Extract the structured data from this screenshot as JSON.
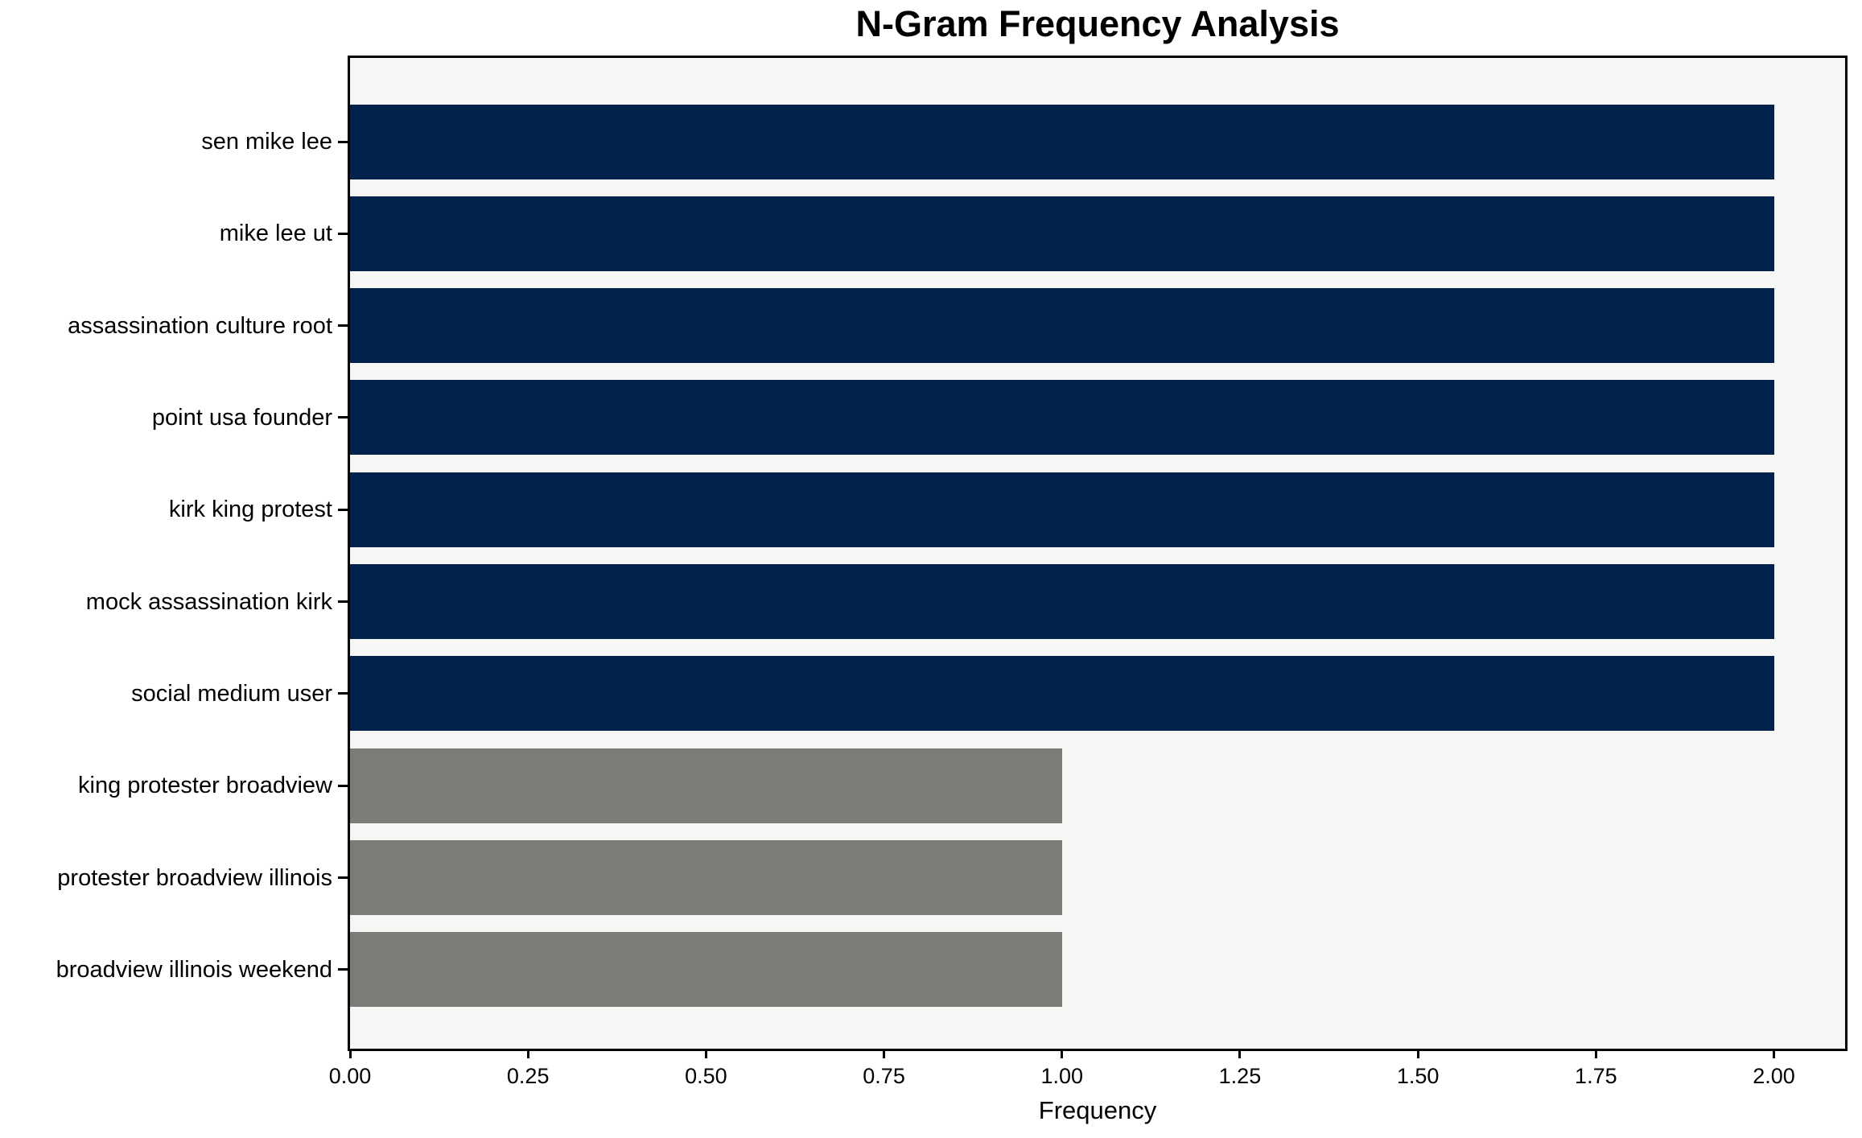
{
  "chart_data": {
    "type": "bar",
    "orientation": "horizontal",
    "title": "N-Gram Frequency Analysis",
    "xlabel": "Frequency",
    "ylabel": "",
    "xlim": [
      0,
      2.1
    ],
    "grid": false,
    "legend_position": "none",
    "categories": [
      "sen mike lee",
      "mike lee ut",
      "assassination culture root",
      "point usa founder",
      "kirk king protest",
      "mock assassination kirk",
      "social medium user",
      "king protester broadview",
      "protester broadview illinois",
      "broadview illinois weekend"
    ],
    "values": [
      2,
      2,
      2,
      2,
      2,
      2,
      2,
      1,
      1,
      1
    ],
    "bars": [
      {
        "label": "sen mike lee",
        "value": 2,
        "color": "navy"
      },
      {
        "label": "mike lee ut",
        "value": 2,
        "color": "navy"
      },
      {
        "label": "assassination culture root",
        "value": 2,
        "color": "navy"
      },
      {
        "label": "point usa founder",
        "value": 2,
        "color": "navy"
      },
      {
        "label": "kirk king protest",
        "value": 2,
        "color": "navy"
      },
      {
        "label": "mock assassination kirk",
        "value": 2,
        "color": "navy"
      },
      {
        "label": "social medium user",
        "value": 2,
        "color": "navy"
      },
      {
        "label": "king protester broadview",
        "value": 1,
        "color": "gray"
      },
      {
        "label": "protester broadview illinois",
        "value": 1,
        "color": "gray"
      },
      {
        "label": "broadview illinois weekend",
        "value": 1,
        "color": "gray"
      }
    ],
    "palette": {
      "navy": "#02234c",
      "gray": "#7b7b78"
    },
    "xticks": [
      {
        "value": 0.0,
        "label": "0.00"
      },
      {
        "value": 0.25,
        "label": "0.25"
      },
      {
        "value": 0.5,
        "label": "0.50"
      },
      {
        "value": 0.75,
        "label": "0.75"
      },
      {
        "value": 1.0,
        "label": "1.00"
      },
      {
        "value": 1.25,
        "label": "1.25"
      },
      {
        "value": 1.5,
        "label": "1.50"
      },
      {
        "value": 1.75,
        "label": "1.75"
      },
      {
        "value": 2.0,
        "label": "2.00"
      }
    ],
    "colors": {
      "figure_background": "#ffffff",
      "plot_background": "#f6f6f5",
      "spine": "#000000",
      "text": "#000000"
    }
  }
}
